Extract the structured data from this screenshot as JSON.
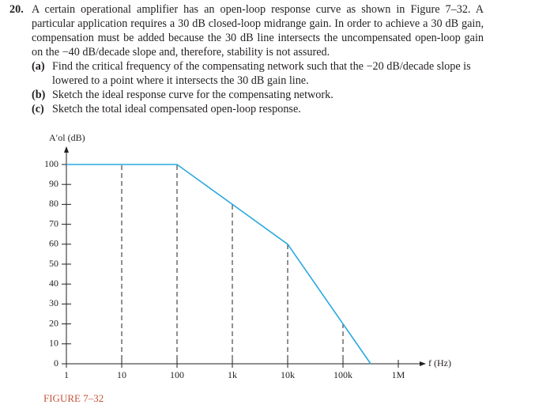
{
  "problem": {
    "number": "20.",
    "text": "A certain operational amplifier has an open-loop response curve as shown in Figure 7–32. A particular application requires a 30 dB closed-loop midrange gain. In order to achieve a 30 dB gain, compensation must be added because the 30 dB line intersects the uncompensated open-loop gain on the −40 dB/decade slope and, therefore, stability is not assured.",
    "items": [
      {
        "label": "(a)",
        "text": "Find the critical frequency of the compensating network such that the −20 dB/decade slope is lowered to a point where it intersects the 30 dB gain line."
      },
      {
        "label": "(b)",
        "text": "Sketch the ideal response curve for the compensating network."
      },
      {
        "label": "(c)",
        "text": "Sketch the total ideal compensated open-loop response."
      }
    ]
  },
  "chart_data": {
    "type": "line",
    "caption": "FIGURE 7–32",
    "y_label": "A′ol (dB)",
    "x_label": "f (Hz)",
    "x": [
      1,
      100,
      1000,
      10000,
      100000,
      316228
    ],
    "values": [
      100,
      100,
      80,
      60,
      20,
      0
    ],
    "color": "#29a8e0",
    "x_scale": "log",
    "xlim": [
      1,
      1000000
    ],
    "xticks": [
      1,
      10,
      100,
      {
        "value": 1000,
        "label": "1k"
      },
      {
        "value": 10000,
        "label": "10k"
      },
      {
        "value": 100000,
        "label": "100k"
      },
      {
        "value": 1000000,
        "label": "1M"
      }
    ],
    "ylim": [
      0,
      100
    ],
    "yticks": [
      0,
      10,
      20,
      30,
      40,
      50,
      60,
      70,
      80,
      90,
      100
    ]
  }
}
